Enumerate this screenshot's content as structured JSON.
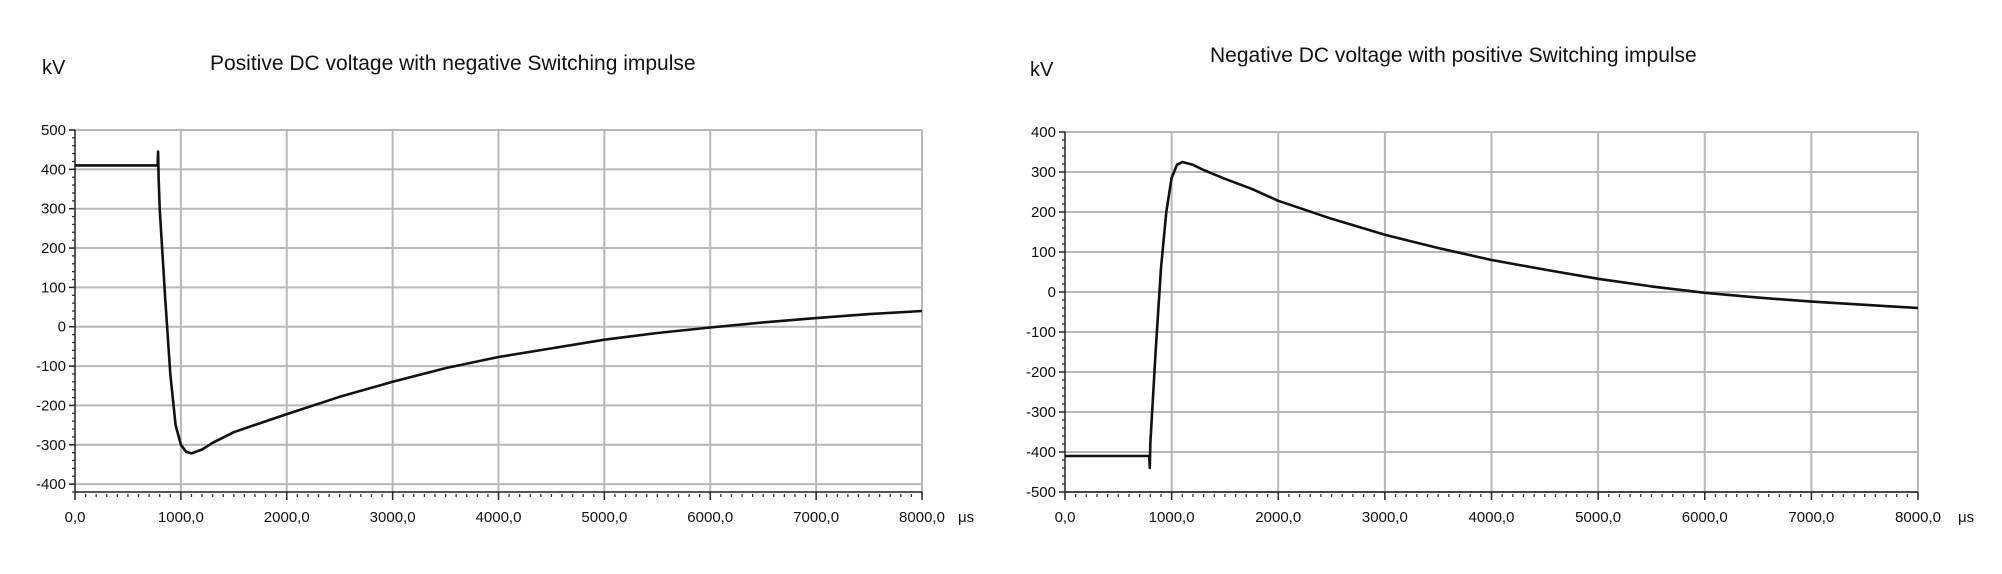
{
  "chart_data": [
    {
      "type": "line",
      "title": "Positive DC voltage with negative Switching impulse",
      "ylabel": "kV",
      "xlabel": "μs",
      "x_ticks": [
        "0,0",
        "1000,0",
        "2000,0",
        "3000,0",
        "4000,0",
        "5000,0",
        "6000,0",
        "7000,0",
        "8000,0"
      ],
      "y_ticks": [
        "500",
        "400",
        "300",
        "200",
        "100",
        "0",
        "-100",
        "-200",
        "-300",
        "-400"
      ],
      "xlim": [
        0,
        8000
      ],
      "ylim": [
        -420,
        500
      ],
      "grid": true,
      "series": [
        {
          "x": [
            0,
            780,
            785,
            790,
            800,
            850,
            900,
            950,
            1000,
            1050,
            1100,
            1200,
            1300,
            1500,
            1750,
            2000,
            2500,
            3000,
            3500,
            4000,
            4500,
            5000,
            5500,
            6000,
            6500,
            7000,
            7500,
            8000
          ],
          "y": [
            410,
            410,
            445,
            380,
            300,
            80,
            -120,
            -250,
            -300,
            -318,
            -322,
            -312,
            -295,
            -268,
            -245,
            -222,
            -178,
            -140,
            -105,
            -77,
            -55,
            -33,
            -16,
            -2,
            11,
            22,
            32,
            40
          ]
        }
      ]
    },
    {
      "type": "line",
      "title": "Negative DC voltage with positive Switching impulse",
      "ylabel": "kV",
      "xlabel": "μs",
      "x_ticks": [
        "0,0",
        "1000,0",
        "2000,0",
        "3000,0",
        "4000,0",
        "5000,0",
        "6000,0",
        "7000,0",
        "8000,0"
      ],
      "y_ticks": [
        "400",
        "300",
        "200",
        "100",
        "0",
        "-100",
        "-200",
        "-300",
        "-400",
        "-500"
      ],
      "xlim": [
        0,
        8000
      ],
      "ylim": [
        -500,
        400
      ],
      "grid": true,
      "series": [
        {
          "x": [
            0,
            790,
            795,
            800,
            850,
            900,
            950,
            1000,
            1050,
            1100,
            1200,
            1300,
            1500,
            1750,
            2000,
            2500,
            3000,
            3500,
            4000,
            4500,
            5000,
            5500,
            6000,
            6500,
            7000,
            7500,
            8000
          ],
          "y": [
            -410,
            -410,
            -440,
            -380,
            -150,
            60,
            200,
            285,
            318,
            325,
            318,
            305,
            283,
            258,
            228,
            183,
            143,
            110,
            80,
            56,
            33,
            14,
            -2,
            -14,
            -24,
            -32,
            -40
          ]
        }
      ]
    }
  ]
}
